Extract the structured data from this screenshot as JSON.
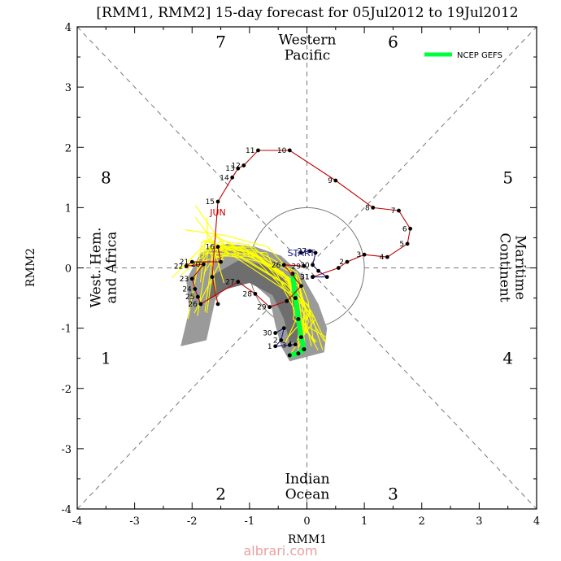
{
  "chart_data": {
    "type": "line",
    "title": "[RMM1, RMM2] 15-day forecast for 05Jul2012 to 19Jul2012",
    "xlabel": "RMM1",
    "ylabel": "RMM2",
    "xlim": [
      -4,
      4
    ],
    "ylim": [
      -4,
      4
    ],
    "xticks": [
      "-4",
      "-3",
      "-2",
      "-1",
      "0",
      "1",
      "2",
      "3",
      "4"
    ],
    "yticks": [
      "-4",
      "-3",
      "-2",
      "-1",
      "0",
      "1",
      "2",
      "3",
      "4"
    ],
    "phase_numbers": [
      {
        "label": "7",
        "x": -1.5,
        "y": 3.75
      },
      {
        "label": "6",
        "x": 1.5,
        "y": 3.75
      },
      {
        "label": "8",
        "x": -3.5,
        "y": 1.5
      },
      {
        "label": "5",
        "x": 3.5,
        "y": 1.5
      },
      {
        "label": "1",
        "x": -3.5,
        "y": -1.5
      },
      {
        "label": "4",
        "x": 3.5,
        "y": -1.5
      },
      {
        "label": "2",
        "x": -1.5,
        "y": -3.75
      },
      {
        "label": "3",
        "x": 1.5,
        "y": -3.75
      }
    ],
    "regions": {
      "top": [
        "Western",
        "Pacific"
      ],
      "bottom": [
        "Indian",
        "Ocean"
      ],
      "left": [
        "West. Hem.",
        "and Africa"
      ],
      "right": [
        "Maritime",
        "Continent"
      ]
    },
    "month_label": "JUN",
    "start_label": "START",
    "legend": [
      {
        "name": "NCEP GEFS",
        "color": "#00ff3c"
      }
    ],
    "observed": {
      "color": "#c00000",
      "points": [
        {
          "label": "",
          "x": -1.55,
          "y": -0.6
        },
        {
          "label": "",
          "x": -1.65,
          "y": -0.15
        },
        {
          "label": "15",
          "x": -1.55,
          "y": 1.1
        },
        {
          "label": "14",
          "x": -1.3,
          "y": 1.5
        },
        {
          "label": "13",
          "x": -1.2,
          "y": 1.65
        },
        {
          "label": "12",
          "x": -1.1,
          "y": 1.7
        },
        {
          "label": "11",
          "x": -0.85,
          "y": 1.95
        },
        {
          "label": "10",
          "x": -0.3,
          "y": 1.95
        },
        {
          "label": "9",
          "x": 0.5,
          "y": 1.45
        },
        {
          "label": "8",
          "x": 1.15,
          "y": 1.0
        },
        {
          "label": "7",
          "x": 1.6,
          "y": 0.95
        },
        {
          "label": "6",
          "x": 1.8,
          "y": 0.65
        },
        {
          "label": "5",
          "x": 1.75,
          "y": 0.4
        },
        {
          "label": "4",
          "x": 1.4,
          "y": 0.18
        },
        {
          "label": "3",
          "x": 1.0,
          "y": 0.22
        },
        {
          "label": "2",
          "x": 0.7,
          "y": 0.1
        },
        {
          "label": "",
          "x": 0.55,
          "y": 0.0
        },
        {
          "label": "31",
          "x": 0.1,
          "y": -0.15
        }
      ]
    },
    "previous_month": {
      "color": "#c00000",
      "points": [
        {
          "label": "16",
          "x": -1.55,
          "y": 0.35
        },
        {
          "label": "",
          "x": -1.5,
          "y": 0.1
        },
        {
          "label": "21",
          "x": -2.0,
          "y": 0.1
        },
        {
          "label": "22",
          "x": -2.1,
          "y": 0.03
        },
        {
          "label": "20",
          "x": -1.8,
          "y": 0.06
        },
        {
          "label": "23",
          "x": -2.0,
          "y": -0.18
        },
        {
          "label": "24",
          "x": -1.95,
          "y": -0.35
        },
        {
          "label": "25",
          "x": -1.9,
          "y": -0.48
        },
        {
          "label": "26",
          "x": -1.85,
          "y": -0.6
        },
        {
          "label": "27",
          "x": -1.2,
          "y": -0.23
        },
        {
          "label": "28",
          "x": -0.9,
          "y": -0.43
        },
        {
          "label": "29",
          "x": -0.65,
          "y": -0.65
        },
        {
          "label": "",
          "x": -0.35,
          "y": -0.55
        },
        {
          "label": "",
          "x": -0.1,
          "y": -0.3
        },
        {
          "label": "26",
          "x": -0.4,
          "y": 0.05
        },
        {
          "label": "29",
          "x": -0.05,
          "y": 0.03
        }
      ]
    },
    "start_segment": {
      "color": "#1a1a8c",
      "points": [
        {
          "label": "START",
          "x": -0.1,
          "y": 0.25
        },
        {
          "label": "27",
          "x": 0.05,
          "y": 0.28
        },
        {
          "label": "",
          "x": 0.15,
          "y": 0.25
        },
        {
          "label": "30",
          "x": 0.1,
          "y": 0.05
        },
        {
          "label": "",
          "x": 0.2,
          "y": -0.05
        },
        {
          "label": "",
          "x": 0.35,
          "y": -0.15
        },
        {
          "label": "31",
          "x": 0.1,
          "y": -0.15
        }
      ]
    },
    "early_july": {
      "color": "#1a1a8c",
      "points": [
        {
          "label": "30",
          "x": -0.55,
          "y": -1.08
        },
        {
          "label": "",
          "x": -0.4,
          "y": -1.0
        },
        {
          "label": "2",
          "x": -0.45,
          "y": -1.2
        },
        {
          "label": "1",
          "x": -0.55,
          "y": -1.3
        },
        {
          "label": "3",
          "x": -0.3,
          "y": -1.28
        },
        {
          "label": "4",
          "x": -0.2,
          "y": -1.27
        }
      ]
    },
    "forecast_mean": [
      {
        "x": -0.25,
        "y": -0.1
      },
      {
        "x": -0.2,
        "y": -0.5
      },
      {
        "x": -0.15,
        "y": -0.85
      },
      {
        "x": -0.1,
        "y": -1.15
      },
      {
        "x": -0.05,
        "y": -1.35
      },
      {
        "x": -0.15,
        "y": -1.42
      },
      {
        "x": -0.3,
        "y": -1.45
      }
    ],
    "ensemble_count": 20,
    "ensemble_color": "#ffff00",
    "uncertainty_color": "#9a9a9a"
  },
  "watermark": "albrari.com"
}
